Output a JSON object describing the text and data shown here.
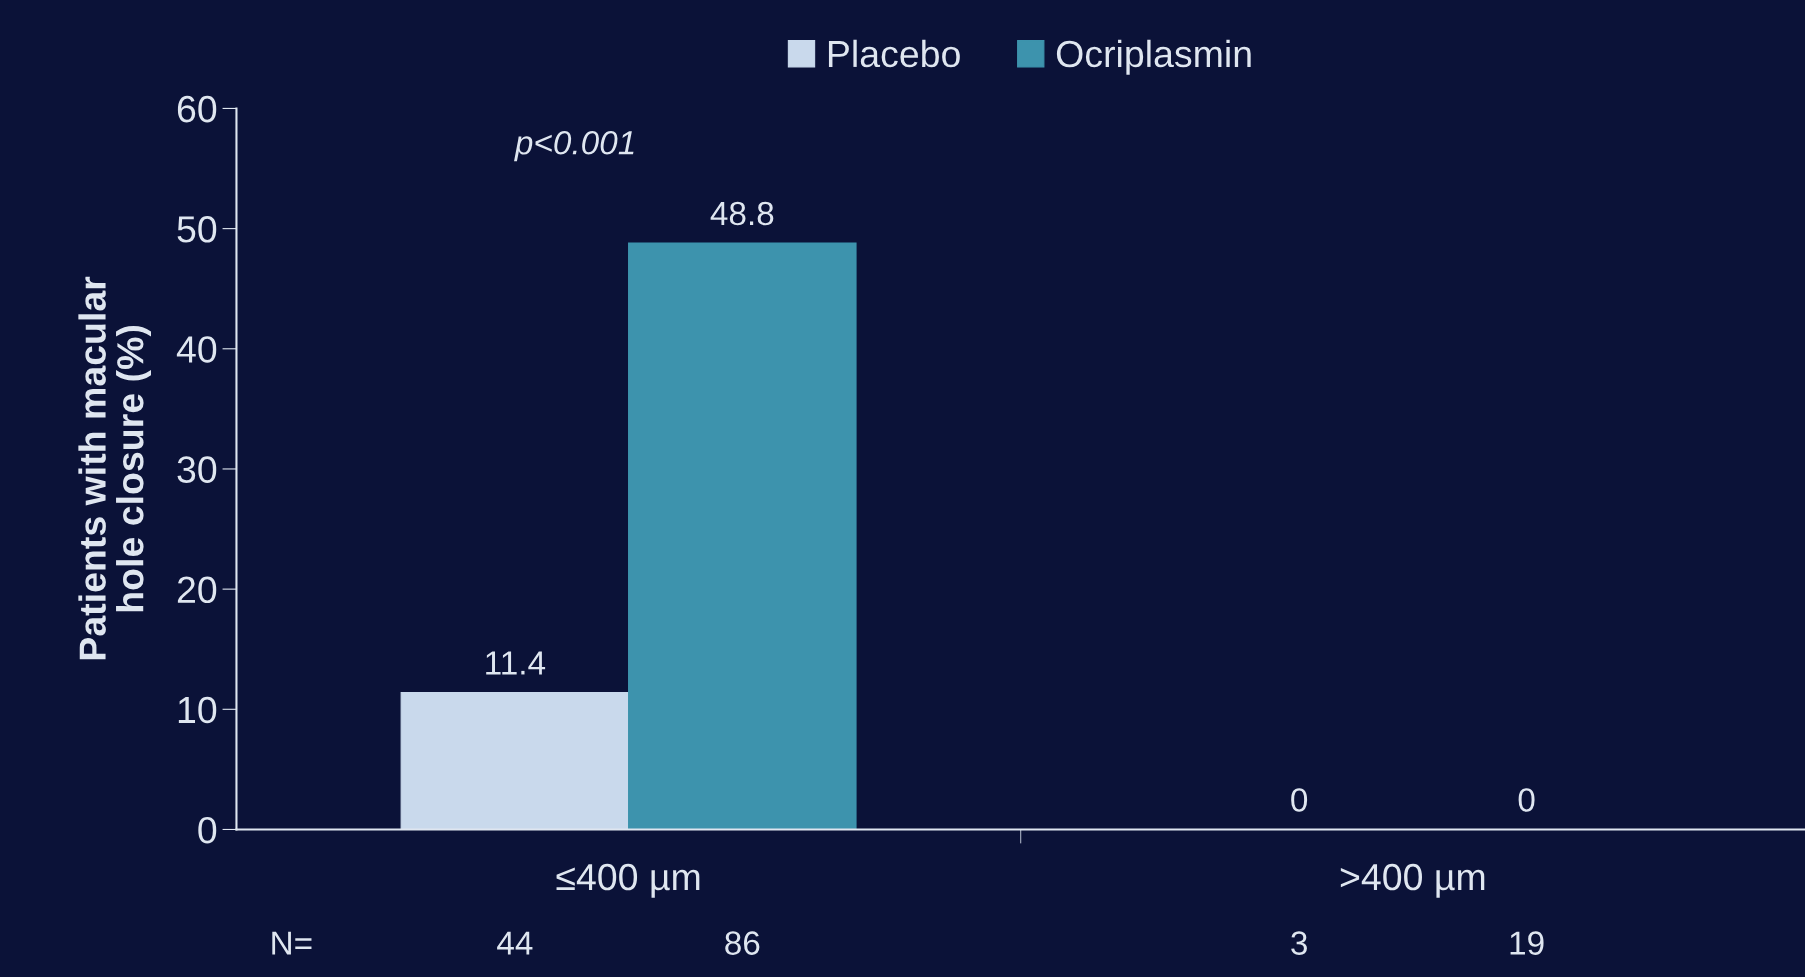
{
  "chart_data": {
    "type": "bar",
    "ylabel": "Patients with macular\nhole closure (%)",
    "categories": [
      "≤400 µm",
      ">400 µm"
    ],
    "series": [
      {
        "name": "Placebo",
        "color": "#c9d9ec",
        "values": [
          11.4,
          0
        ]
      },
      {
        "name": "Ocriplasmin",
        "color": "#3d93ad",
        "values": [
          48.8,
          0
        ]
      }
    ],
    "ylim": [
      0,
      60
    ],
    "yticks": [
      0,
      10,
      20,
      30,
      40,
      50,
      60
    ],
    "data_labels": true,
    "legend": "top",
    "grid": false,
    "annotations": [
      "p<0.001",
      "N=",
      "44",
      "86",
      "3",
      "19"
    ]
  }
}
